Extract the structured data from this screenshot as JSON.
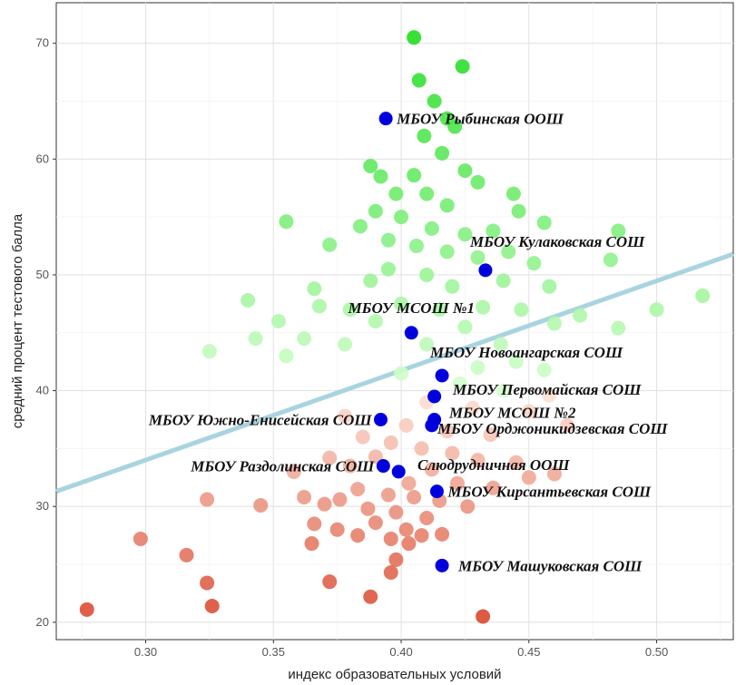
{
  "chart_data": {
    "type": "scatter",
    "title": "",
    "xlabel": "индекс образовательных условий",
    "ylabel": "средний процент тестового балла",
    "xlim": [
      0.265,
      0.53
    ],
    "ylim": [
      18.5,
      73.5
    ],
    "x_ticks": [
      "0.30",
      "0.35",
      "0.40",
      "0.45",
      "0.50"
    ],
    "y_ticks": [
      "20",
      "30",
      "40",
      "50",
      "60",
      "70"
    ],
    "grid": true,
    "legend": "none",
    "trend_line": {
      "x1": 0.265,
      "y1": 31.3,
      "x2": 0.53,
      "y2": 51.8,
      "color": "#a8d4df"
    },
    "colors": {
      "high": "#22dd22",
      "mid_high": "#d6ffd0",
      "mid_low": "#fde3d7",
      "low": "#d9452b",
      "highlight": "#0000dd"
    },
    "background_points": [
      {
        "x": 0.405,
        "y": 70.5
      },
      {
        "x": 0.424,
        "y": 68.0
      },
      {
        "x": 0.407,
        "y": 66.8
      },
      {
        "x": 0.413,
        "y": 65.0
      },
      {
        "x": 0.418,
        "y": 63.5
      },
      {
        "x": 0.421,
        "y": 62.8
      },
      {
        "x": 0.409,
        "y": 62.0
      },
      {
        "x": 0.416,
        "y": 60.5
      },
      {
        "x": 0.388,
        "y": 59.4
      },
      {
        "x": 0.392,
        "y": 58.5
      },
      {
        "x": 0.405,
        "y": 58.6
      },
      {
        "x": 0.425,
        "y": 59.0
      },
      {
        "x": 0.43,
        "y": 58.0
      },
      {
        "x": 0.398,
        "y": 57.0
      },
      {
        "x": 0.41,
        "y": 57.0
      },
      {
        "x": 0.418,
        "y": 56.0
      },
      {
        "x": 0.444,
        "y": 57.0
      },
      {
        "x": 0.446,
        "y": 55.5
      },
      {
        "x": 0.456,
        "y": 54.5
      },
      {
        "x": 0.39,
        "y": 55.5
      },
      {
        "x": 0.4,
        "y": 55.0
      },
      {
        "x": 0.355,
        "y": 54.6
      },
      {
        "x": 0.384,
        "y": 54.2
      },
      {
        "x": 0.412,
        "y": 54.0
      },
      {
        "x": 0.425,
        "y": 53.5
      },
      {
        "x": 0.436,
        "y": 53.8
      },
      {
        "x": 0.395,
        "y": 53.0
      },
      {
        "x": 0.406,
        "y": 52.5
      },
      {
        "x": 0.418,
        "y": 52.0
      },
      {
        "x": 0.372,
        "y": 52.6
      },
      {
        "x": 0.43,
        "y": 51.5
      },
      {
        "x": 0.442,
        "y": 52.0
      },
      {
        "x": 0.452,
        "y": 51.0
      },
      {
        "x": 0.485,
        "y": 53.8
      },
      {
        "x": 0.482,
        "y": 51.3
      },
      {
        "x": 0.395,
        "y": 50.5
      },
      {
        "x": 0.41,
        "y": 50.0
      },
      {
        "x": 0.388,
        "y": 49.5
      },
      {
        "x": 0.366,
        "y": 48.8
      },
      {
        "x": 0.42,
        "y": 49.0
      },
      {
        "x": 0.44,
        "y": 49.5
      },
      {
        "x": 0.458,
        "y": 49.0
      },
      {
        "x": 0.34,
        "y": 47.8
      },
      {
        "x": 0.38,
        "y": 47.0
      },
      {
        "x": 0.368,
        "y": 47.3
      },
      {
        "x": 0.4,
        "y": 47.5
      },
      {
        "x": 0.415,
        "y": 47.0
      },
      {
        "x": 0.432,
        "y": 47.2
      },
      {
        "x": 0.447,
        "y": 47.0
      },
      {
        "x": 0.352,
        "y": 46.0
      },
      {
        "x": 0.39,
        "y": 46.0
      },
      {
        "x": 0.425,
        "y": 45.5
      },
      {
        "x": 0.46,
        "y": 45.8
      },
      {
        "x": 0.47,
        "y": 46.5
      },
      {
        "x": 0.343,
        "y": 44.5
      },
      {
        "x": 0.362,
        "y": 44.5
      },
      {
        "x": 0.378,
        "y": 44.0
      },
      {
        "x": 0.41,
        "y": 44.0
      },
      {
        "x": 0.439,
        "y": 44.0
      },
      {
        "x": 0.485,
        "y": 45.4
      },
      {
        "x": 0.325,
        "y": 43.4
      },
      {
        "x": 0.355,
        "y": 43.0
      },
      {
        "x": 0.445,
        "y": 42.5
      },
      {
        "x": 0.456,
        "y": 41.8
      },
      {
        "x": 0.43,
        "y": 42.0
      },
      {
        "x": 0.5,
        "y": 47.0
      },
      {
        "x": 0.518,
        "y": 48.2
      },
      {
        "x": 0.4,
        "y": 41.5
      },
      {
        "x": 0.423,
        "y": 40.6
      },
      {
        "x": 0.44,
        "y": 40.0
      },
      {
        "x": 0.458,
        "y": 39.6
      },
      {
        "x": 0.41,
        "y": 39.0
      },
      {
        "x": 0.428,
        "y": 38.5
      },
      {
        "x": 0.45,
        "y": 38.2
      },
      {
        "x": 0.378,
        "y": 37.8
      },
      {
        "x": 0.402,
        "y": 37.0
      },
      {
        "x": 0.418,
        "y": 36.5
      },
      {
        "x": 0.435,
        "y": 36.2
      },
      {
        "x": 0.465,
        "y": 37.0
      },
      {
        "x": 0.385,
        "y": 36.0
      },
      {
        "x": 0.396,
        "y": 35.5
      },
      {
        "x": 0.408,
        "y": 35.0
      },
      {
        "x": 0.42,
        "y": 34.6
      },
      {
        "x": 0.43,
        "y": 34.0
      },
      {
        "x": 0.445,
        "y": 33.8
      },
      {
        "x": 0.372,
        "y": 34.2
      },
      {
        "x": 0.38,
        "y": 33.5
      },
      {
        "x": 0.39,
        "y": 34.3
      },
      {
        "x": 0.358,
        "y": 33.0
      },
      {
        "x": 0.403,
        "y": 32.0
      },
      {
        "x": 0.412,
        "y": 33.2
      },
      {
        "x": 0.422,
        "y": 32.0
      },
      {
        "x": 0.436,
        "y": 31.6
      },
      {
        "x": 0.45,
        "y": 32.5
      },
      {
        "x": 0.46,
        "y": 32.8
      },
      {
        "x": 0.383,
        "y": 31.5
      },
      {
        "x": 0.395,
        "y": 31.0
      },
      {
        "x": 0.405,
        "y": 30.8
      },
      {
        "x": 0.415,
        "y": 30.5
      },
      {
        "x": 0.426,
        "y": 30.0
      },
      {
        "x": 0.362,
        "y": 30.8
      },
      {
        "x": 0.376,
        "y": 30.6
      },
      {
        "x": 0.324,
        "y": 30.6
      },
      {
        "x": 0.345,
        "y": 30.1
      },
      {
        "x": 0.37,
        "y": 30.2
      },
      {
        "x": 0.387,
        "y": 29.8
      },
      {
        "x": 0.398,
        "y": 29.5
      },
      {
        "x": 0.41,
        "y": 29.0
      },
      {
        "x": 0.39,
        "y": 28.6
      },
      {
        "x": 0.366,
        "y": 28.5
      },
      {
        "x": 0.375,
        "y": 28.0
      },
      {
        "x": 0.402,
        "y": 28.0
      },
      {
        "x": 0.383,
        "y": 27.5
      },
      {
        "x": 0.396,
        "y": 27.2
      },
      {
        "x": 0.408,
        "y": 27.5
      },
      {
        "x": 0.416,
        "y": 27.6
      },
      {
        "x": 0.365,
        "y": 26.8
      },
      {
        "x": 0.298,
        "y": 27.2
      },
      {
        "x": 0.403,
        "y": 26.8
      },
      {
        "x": 0.398,
        "y": 25.4
      },
      {
        "x": 0.316,
        "y": 25.8
      },
      {
        "x": 0.396,
        "y": 24.3
      },
      {
        "x": 0.324,
        "y": 23.4
      },
      {
        "x": 0.372,
        "y": 23.5
      },
      {
        "x": 0.388,
        "y": 22.2
      },
      {
        "x": 0.326,
        "y": 21.4
      },
      {
        "x": 0.277,
        "y": 21.1
      },
      {
        "x": 0.432,
        "y": 20.5
      }
    ],
    "highlighted_points": [
      {
        "x": 0.394,
        "y": 63.5,
        "label": "МБОУ Рыбинская ООШ"
      },
      {
        "x": 0.433,
        "y": 50.4,
        "label": "МБОУ Кулаковская СОШ"
      },
      {
        "x": 0.404,
        "y": 45.0,
        "label": "МБОУ МСОШ №1"
      },
      {
        "x": 0.416,
        "y": 41.3,
        "label": "МБОУ Новоангарская СОШ"
      },
      {
        "x": 0.413,
        "y": 39.5,
        "label": "МБОУ Первомайская СОШ"
      },
      {
        "x": 0.413,
        "y": 37.5,
        "label": "МБОУ МСОШ №2"
      },
      {
        "x": 0.412,
        "y": 37.0,
        "label": "МБОУ Орджоникидзевская СОШ"
      },
      {
        "x": 0.392,
        "y": 37.5,
        "label": "МБОУ Южно-Енисейская СОШ"
      },
      {
        "x": 0.393,
        "y": 33.5,
        "label": "МБОУ Раздолинская СОШ"
      },
      {
        "x": 0.399,
        "y": 33.0,
        "label": "Слюдрудничная ООШ"
      },
      {
        "x": 0.414,
        "y": 31.3,
        "label": "МБОУ Кирсантьевская СОШ"
      },
      {
        "x": 0.416,
        "y": 24.9,
        "label": "МБОУ Машуковская СОШ"
      }
    ]
  }
}
